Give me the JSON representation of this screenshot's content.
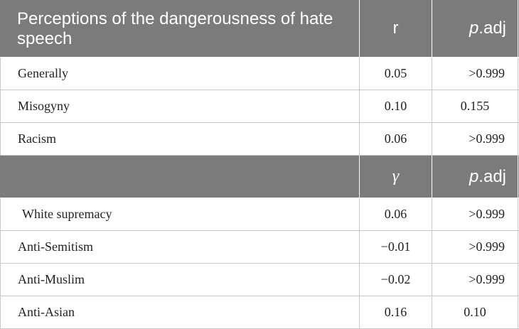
{
  "header1": {
    "title": "Perceptions of the dangerousness of hate speech",
    "col2": "r",
    "col3_italic": "p",
    "col3_rest": ".adj"
  },
  "header2": {
    "col1": "",
    "col2": "γ",
    "col3_italic": "p",
    "col3_rest": ".adj"
  },
  "group1": [
    {
      "label": "Generally",
      "value": "0.05",
      "p": ">0.999"
    },
    {
      "label": "Misogyny",
      "value": "0.10",
      "p": "0.155"
    },
    {
      "label": "Racism",
      "value": "0.06",
      "p": ">0.999"
    }
  ],
  "group2": [
    {
      "label": "White supremacy",
      "value": "0.06",
      "p": ">0.999"
    },
    {
      "label": "Anti-Semitism",
      "value": "−0.01",
      "p": ">0.999"
    },
    {
      "label": "Anti-Muslim",
      "value": "−0.02",
      "p": ">0.999"
    },
    {
      "label": "Anti-Asian",
      "value": "0.16",
      "p": "0.10"
    }
  ],
  "colors": {
    "header_bg": "#7b7b7b",
    "header_text": "#ffffff",
    "border": "#c8c8c8",
    "body_text": "#222222"
  }
}
